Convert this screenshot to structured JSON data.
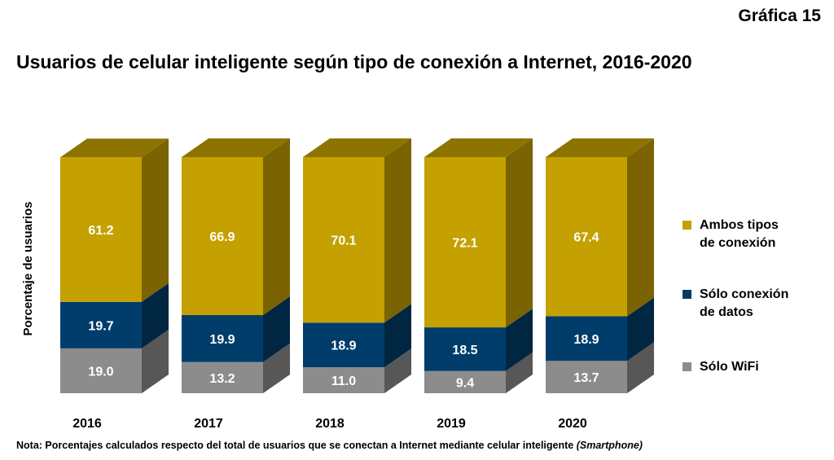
{
  "header": {
    "figure_number": "Gráfica 15",
    "title": "Usuarios de celular inteligente según tipo de conexión a Internet, 2016-2020"
  },
  "colors": {
    "ambos": "#C4A000",
    "datos": "#003D6B",
    "wifi": "#8C8C8C"
  },
  "chart_data": {
    "type": "bar",
    "stacked": true,
    "three_d": true,
    "categories": [
      "2016",
      "2017",
      "2018",
      "2019",
      "2020"
    ],
    "ylabel": "Porcentaje de usuarios",
    "xlabel": "",
    "ylim": [
      0,
      100
    ],
    "grid": false,
    "legend_position": "right",
    "series": [
      {
        "name": "Sólo WiFi",
        "values": [
          19.0,
          13.2,
          11.0,
          9.4,
          13.7
        ]
      },
      {
        "name": "Sólo conexión de datos",
        "values": [
          19.7,
          19.9,
          18.9,
          18.5,
          18.9
        ]
      },
      {
        "name": "Ambos tipos de conexión",
        "values": [
          61.2,
          66.9,
          70.1,
          72.1,
          67.4
        ]
      }
    ],
    "data_labels": [
      [
        "19.0",
        "13.2",
        "11.0",
        "9.4",
        "13.7"
      ],
      [
        "19.7",
        "19.9",
        "18.9",
        "18.5",
        "18.9"
      ],
      [
        "61.2",
        "66.9",
        "70.1",
        "72.1",
        "67.4"
      ]
    ]
  },
  "legend": [
    {
      "label_line1": "Ambos tipos",
      "label_line2": "de conexión"
    },
    {
      "label_line1": "Sólo conexión",
      "label_line2": "de datos"
    },
    {
      "label_line1": "Sólo WiFi",
      "label_line2": ""
    }
  ],
  "note": {
    "text": "Nota: Porcentajes calculados respecto del total de usuarios que se conectan a Internet mediante celular inteligente ",
    "italic_text": "(Smartphone)"
  }
}
